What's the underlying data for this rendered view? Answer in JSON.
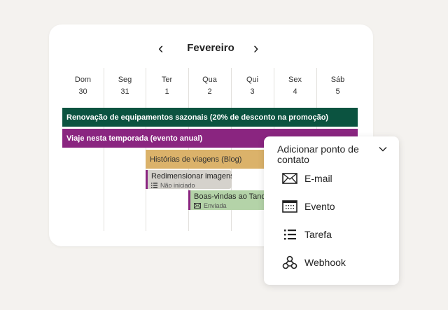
{
  "calendar": {
    "month": "Fevereiro",
    "days": [
      {
        "name": "Dom",
        "num": "30"
      },
      {
        "name": "Seg",
        "num": "31"
      },
      {
        "name": "Ter",
        "num": "1"
      },
      {
        "name": "Qua",
        "num": "2"
      },
      {
        "name": "Qui",
        "num": "3"
      },
      {
        "name": "Sex",
        "num": "4"
      },
      {
        "name": "Sáb",
        "num": "5"
      }
    ],
    "events": [
      {
        "label": "Renovação de equipamentos sazonais (20% de desconto na promoção)",
        "color": "#0b5340"
      },
      {
        "label": "Viaje nesta temporada (evento anual)",
        "color": "#8a2580"
      },
      {
        "label": "Histórias de viagens (Blog)",
        "color": "#dbb26a"
      }
    ],
    "tasks": [
      {
        "label": "Redimensionar imagens",
        "status": "Não iniciado",
        "icon": "list-icon",
        "color": "#d5d2cc"
      },
      {
        "label": "Boas-vindas ao Tandem",
        "status": "Enviada",
        "icon": "mail-icon",
        "color": "#b4d3a8"
      }
    ]
  },
  "popup": {
    "title": "Adicionar ponto de contato",
    "items": [
      {
        "label": "E-mail",
        "icon": "mail-icon"
      },
      {
        "label": "Evento",
        "icon": "calendar-icon"
      },
      {
        "label": "Tarefa",
        "icon": "list-icon"
      },
      {
        "label": "Webhook",
        "icon": "webhook-icon"
      }
    ]
  }
}
